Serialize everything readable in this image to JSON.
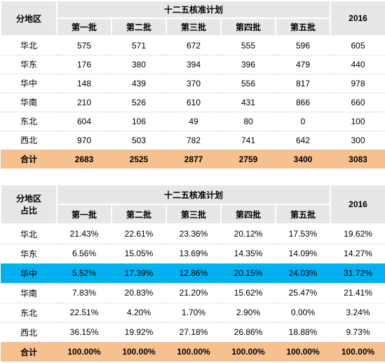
{
  "table1": {
    "header": {
      "region": [
        "分地区"
      ],
      "group": "十二五核准计划",
      "year": "2016",
      "batches": [
        "第一批",
        "第二批",
        "第三批",
        "第四批",
        "第五批"
      ]
    },
    "rows": [
      [
        "华北",
        575,
        571,
        672,
        555,
        596,
        605
      ],
      [
        "华东",
        176,
        380,
        394,
        396,
        479,
        440
      ],
      [
        "华中",
        148,
        439,
        370,
        556,
        817,
        978
      ],
      [
        "华南",
        210,
        526,
        610,
        431,
        866,
        660
      ],
      [
        "东北",
        604,
        106,
        49,
        80,
        0,
        100
      ],
      [
        "西北",
        970,
        503,
        782,
        741,
        642,
        300
      ]
    ],
    "total": [
      "合计",
      2683,
      2525,
      2877,
      2759,
      3400,
      3083
    ]
  },
  "table2": {
    "header": {
      "region": [
        "分地区",
        "占比"
      ],
      "group": "十二五核准计划",
      "year": "2016",
      "batches": [
        "第一批",
        "第二批",
        "第三批",
        "第四批",
        "第五批"
      ]
    },
    "rows": [
      [
        "华北",
        "21.43%",
        "22.61%",
        "23.36%",
        "20.12%",
        "17.53%",
        "19.62%"
      ],
      [
        "华东",
        "6.56%",
        "15.05%",
        "13.69%",
        "14.35%",
        "14.09%",
        "14.27%"
      ],
      [
        "华中",
        "5.52%",
        "17.39%",
        "12.86%",
        "20.15%",
        "24.03%",
        "31.72%"
      ],
      [
        "华南",
        "7.83%",
        "20.83%",
        "21.20%",
        "15.62%",
        "25.47%",
        "21.41%"
      ],
      [
        "东北",
        "22.51%",
        "4.20%",
        "1.70%",
        "2.90%",
        "0.00%",
        "3.24%"
      ],
      [
        "西北",
        "36.15%",
        "19.92%",
        "27.18%",
        "26.86%",
        "18.88%",
        "9.73%"
      ]
    ],
    "total": [
      "合计",
      "100.00%",
      "100.00%",
      "100.00%",
      "100.00%",
      "100.00%",
      "100.00%"
    ],
    "highlighted_row": 2,
    "highlight_color": "#00b0f0"
  }
}
